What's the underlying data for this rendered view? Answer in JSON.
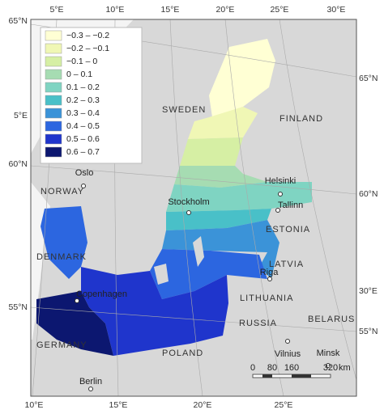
{
  "legend": [
    {
      "label": "−0.3 – −0.2",
      "color": "#ffffd4"
    },
    {
      "label": "−0.2 – −0.1",
      "color": "#f0f7b5"
    },
    {
      "label": "−0.1 – 0",
      "color": "#d6efa4"
    },
    {
      "label": "0 – 0.1",
      "color": "#a6dcb2"
    },
    {
      "label": "0.1 – 0.2",
      "color": "#7fd4c2"
    },
    {
      "label": "0.2 – 0.3",
      "color": "#49c0c8"
    },
    {
      "label": "0.3 – 0.4",
      "color": "#3b93d8"
    },
    {
      "label": "0.4 – 0.5",
      "color": "#2c66e0"
    },
    {
      "label": "0.5 – 0.6",
      "color": "#1f35cc"
    },
    {
      "label": "0.6 – 0.7",
      "color": "#0c1770"
    }
  ],
  "countries": [
    "SWEDEN",
    "FINLAND",
    "NORWAY",
    "ESTONIA",
    "DENMARK",
    "LATVIA",
    "LITHUANIA",
    "RUSSIA",
    "BELARUS",
    "GERMANY",
    "POLAND"
  ],
  "cities": [
    "Oslo",
    "Stockholm",
    "Helsinki",
    "Tallinn",
    "Riga",
    "Copenhagen",
    "Vilnius",
    "Minsk",
    "Berlin"
  ],
  "graticule": {
    "top": [
      "5°E",
      "10°E",
      "15°E",
      "20°E",
      "25°E",
      "30°E"
    ],
    "left": [
      "65°N",
      "5°E",
      "60°N",
      "55°N"
    ],
    "right": [
      "65°N",
      "60°N",
      "30°E",
      "55°N"
    ],
    "bottom": [
      "10°E",
      "15°E",
      "20°E",
      "25°E"
    ]
  },
  "scale_bar": {
    "labels": [
      "0",
      "80",
      "160",
      "320"
    ],
    "unit": "km"
  }
}
